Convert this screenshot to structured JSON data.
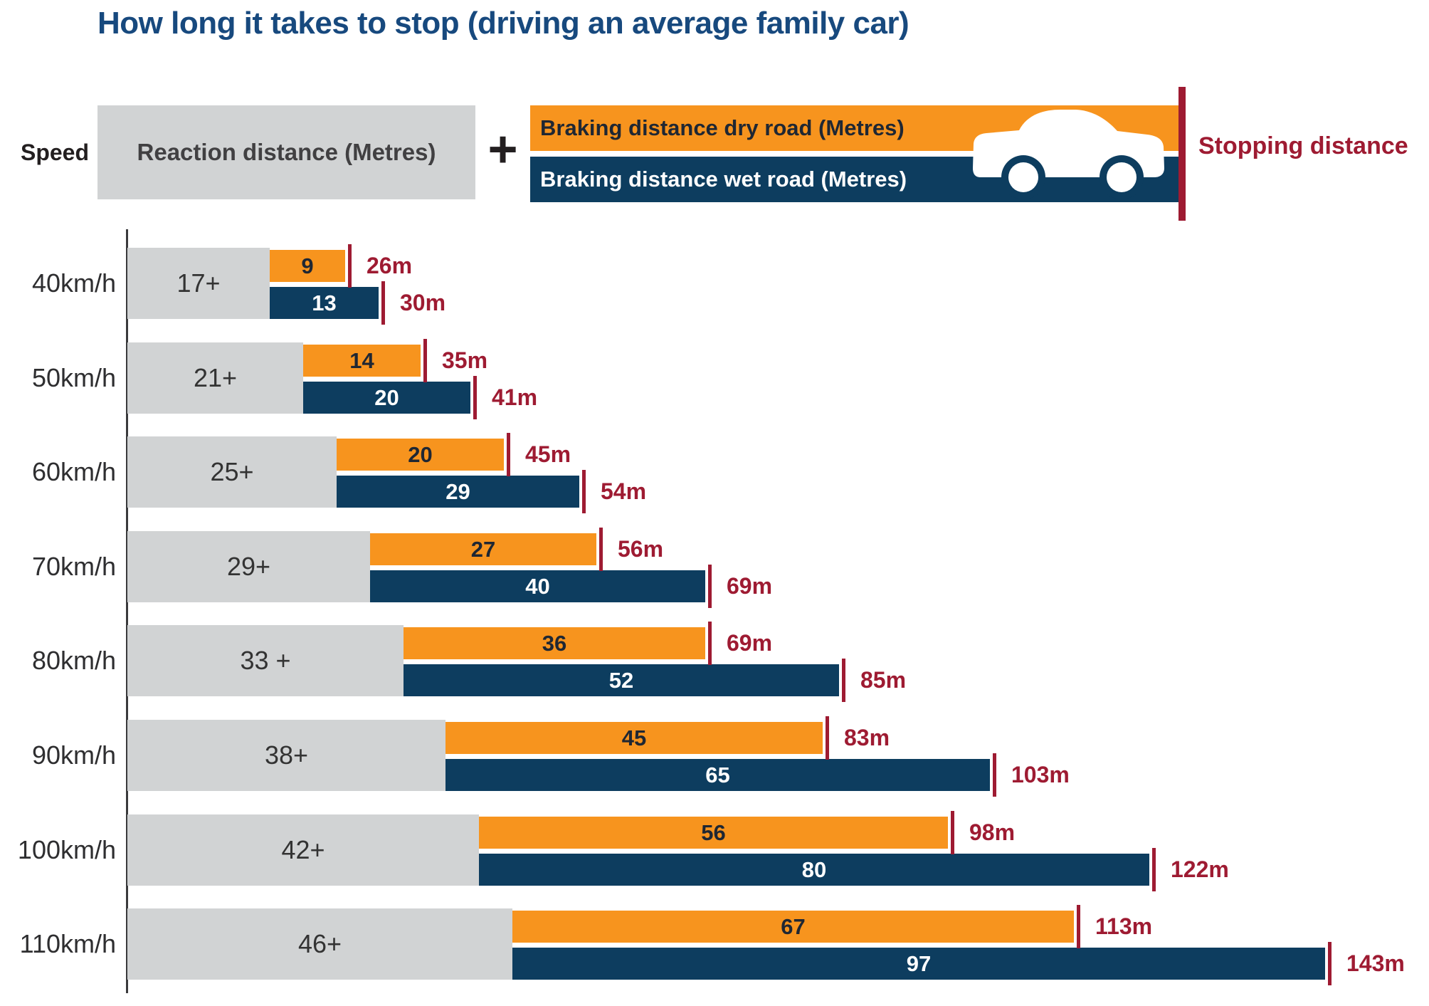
{
  "title": "How long it takes to stop (driving an average family car)",
  "legend": {
    "speed_label": "Speed",
    "reaction_label": "Reaction distance (Metres)",
    "plus_sign": "+",
    "dry_label": "Braking distance dry road (Metres)",
    "wet_label": "Braking distance wet road (Metres)",
    "stopping_label": "Stopping distance",
    "car_icon": "car-icon"
  },
  "colors": {
    "title": "#17497E",
    "reaction_gray": "#D1D3D4",
    "dry_orange": "#F7941E",
    "wet_navy": "#0D3D5F",
    "stopping_maroon": "#9E1B32",
    "text_dark": "#231F20"
  },
  "chart_data": {
    "type": "bar",
    "orientation": "horizontal",
    "title": "How long it takes to stop (driving an average family car)",
    "unit": "metres",
    "grid": false,
    "xlim": [
      0,
      155
    ],
    "categories": [
      "40km/h",
      "50km/h",
      "60km/h",
      "70km/h",
      "80km/h",
      "90km/h",
      "100km/h",
      "110km/h"
    ],
    "series": [
      {
        "name": "Reaction distance (Metres)",
        "values": [
          17,
          21,
          25,
          29,
          33,
          38,
          42,
          46
        ],
        "bar_labels": [
          "17+",
          "21+",
          "25+",
          "29+",
          "33 +",
          "38+",
          "42+",
          "46+"
        ]
      },
      {
        "name": "Braking distance dry road (Metres)",
        "values": [
          9,
          14,
          20,
          27,
          36,
          45,
          56,
          67
        ]
      },
      {
        "name": "Braking distance wet road (Metres)",
        "values": [
          13,
          20,
          29,
          40,
          52,
          65,
          80,
          97
        ]
      }
    ],
    "stopping_distance_dry": [
      26,
      35,
      45,
      56,
      69,
      83,
      98,
      113
    ],
    "stopping_distance_wet": [
      30,
      41,
      54,
      69,
      85,
      103,
      122,
      143
    ],
    "stopping_label_suffix": "m"
  }
}
